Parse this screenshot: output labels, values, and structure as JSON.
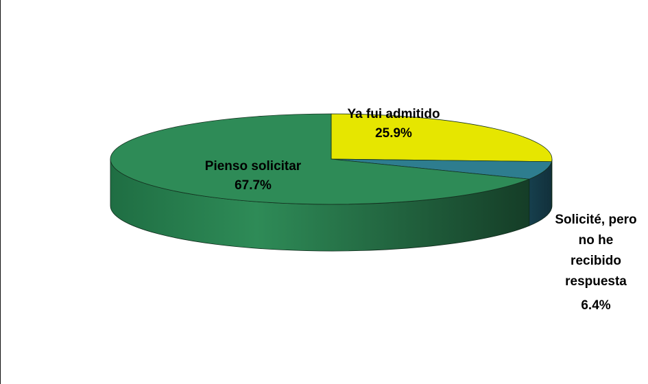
{
  "chart_data": {
    "type": "pie",
    "style": "3d",
    "title": "",
    "slices": [
      {
        "label": "Pienso solicitar",
        "value": 67.7,
        "display": "67.7%",
        "color": "#2e8b57"
      },
      {
        "label": "Ya fui admitido",
        "value": 25.9,
        "display": "25.9%",
        "color": "#e6e600"
      },
      {
        "label": "Solicité, pero no he recibido respuesta",
        "value": 6.4,
        "display": "6.4%",
        "color": "#2e7d8f"
      }
    ],
    "legend": "none",
    "labels": "on-slice"
  }
}
